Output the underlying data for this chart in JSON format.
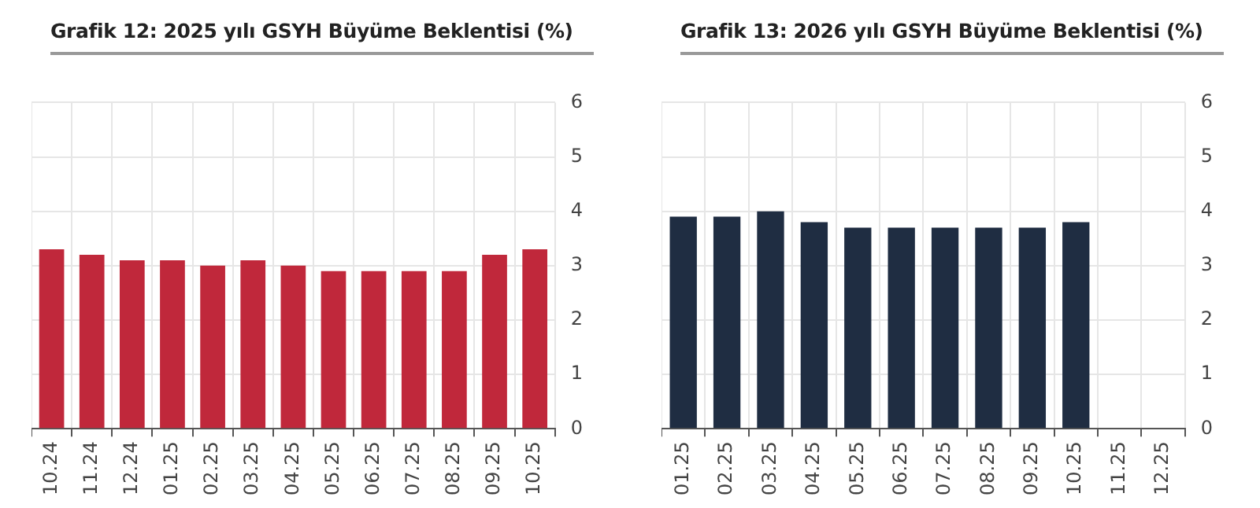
{
  "chart_data": [
    {
      "type": "bar",
      "title": "Grafik 12: 2025 yılı GSYH Büyüme Beklentisi (%)",
      "categories": [
        "10.24",
        "11.24",
        "12.24",
        "01.25",
        "02.25",
        "03.25",
        "04.25",
        "05.25",
        "06.25",
        "07.25",
        "08.25",
        "09.25",
        "10.25"
      ],
      "values": [
        3.3,
        3.2,
        3.1,
        3.1,
        3.0,
        3.1,
        3.0,
        2.9,
        2.9,
        2.9,
        2.9,
        3.2,
        3.3
      ],
      "color": "#c0283b",
      "ylim": [
        0,
        6
      ],
      "yticks": [
        0,
        1,
        2,
        3,
        4,
        5,
        6
      ],
      "grid": true,
      "legend": false
    },
    {
      "type": "bar",
      "title": "Grafik 13: 2026 yılı GSYH Büyüme Beklentisi (%)",
      "categories": [
        "01.25",
        "02.25",
        "03.25",
        "04.25",
        "05.25",
        "06.25",
        "07.25",
        "08.25",
        "09.25",
        "10.25",
        "11.25",
        "12.25"
      ],
      "values": [
        3.9,
        3.9,
        4.0,
        3.8,
        3.7,
        3.7,
        3.7,
        3.7,
        3.7,
        3.8,
        null,
        null
      ],
      "color": "#1f2d42",
      "ylim": [
        0,
        6
      ],
      "yticks": [
        0,
        1,
        2,
        3,
        4,
        5,
        6
      ],
      "grid": true,
      "legend": false
    }
  ]
}
